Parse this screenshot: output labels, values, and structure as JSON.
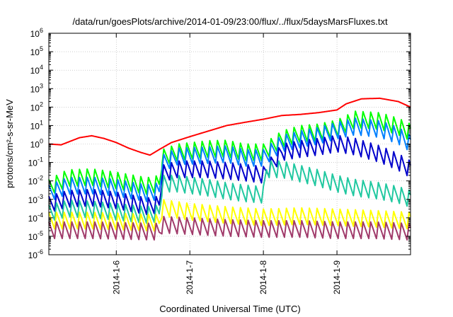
{
  "chart_data": {
    "type": "line",
    "title": "/data/run/goesPlots/archive/2014-01-09/23:00/flux/../flux/5daysMarsFluxes.txt",
    "xlabel": "Coordinated Universal Time (UTC)",
    "ylabel": "protons/cm²-s-sr-MeV",
    "y_log_scale": true,
    "y_tick_exponents": [
      -6,
      -5,
      -4,
      -3,
      -2,
      -1,
      0,
      1,
      2,
      3,
      4,
      5,
      6
    ],
    "xlim": [
      "2014-01-05T02:00",
      "2014-01-10T00:00"
    ],
    "x_ticks": [
      {
        "label": "2014-1-6",
        "date": "2014-01-06T00:00"
      },
      {
        "label": "2014-1-7",
        "date": "2014-01-07T00:00"
      },
      {
        "label": "2014-1-8",
        "date": "2014-01-08T00:00"
      },
      {
        "label": "2014-1-9",
        "date": "2014-01-09T00:00"
      }
    ],
    "grid": true,
    "series": [
      {
        "color": "#ff0000",
        "sawtooth": false,
        "points": [
          [
            "2014-01-05T02:00",
            1.0
          ],
          [
            "2014-01-05T06:00",
            0.9
          ],
          [
            "2014-01-05T12:00",
            2.2
          ],
          [
            "2014-01-05T16:00",
            2.8
          ],
          [
            "2014-01-05T20:00",
            2.0
          ],
          [
            "2014-01-06T00:00",
            1.2
          ],
          [
            "2014-01-06T04:00",
            0.6
          ],
          [
            "2014-01-06T08:00",
            0.35
          ],
          [
            "2014-01-06T11:00",
            0.25
          ],
          [
            "2014-01-06T14:00",
            0.5
          ],
          [
            "2014-01-06T18:00",
            1.2
          ],
          [
            "2014-01-07T00:00",
            2.5
          ],
          [
            "2014-01-07T06:00",
            5.0
          ],
          [
            "2014-01-07T12:00",
            10.0
          ],
          [
            "2014-01-07T18:00",
            15.0
          ],
          [
            "2014-01-08T00:00",
            22.0
          ],
          [
            "2014-01-08T06:00",
            35.0
          ],
          [
            "2014-01-08T12:00",
            40.0
          ],
          [
            "2014-01-08T18:00",
            50.0
          ],
          [
            "2014-01-09T00:00",
            70.0
          ],
          [
            "2014-01-09T03:00",
            150.0
          ],
          [
            "2014-01-09T08:00",
            280.0
          ],
          [
            "2014-01-09T14:00",
            300.0
          ],
          [
            "2014-01-09T20:00",
            200.0
          ],
          [
            "2014-01-10T00:00",
            100.0
          ]
        ]
      },
      {
        "color": "#00ff00",
        "sawtooth": true,
        "points": [
          [
            "2014-01-05T02:00",
            0.012
          ],
          [
            "2014-01-05T08:00",
            0.04
          ],
          [
            "2014-01-05T16:00",
            0.045
          ],
          [
            "2014-01-06T00:00",
            0.03
          ],
          [
            "2014-01-06T10:00",
            0.015
          ],
          [
            "2014-01-06T14:00",
            0.02
          ],
          [
            "2014-01-06T15:00",
            0.5
          ],
          [
            "2014-01-06T20:00",
            1.0
          ],
          [
            "2014-01-07T06:00",
            1.5
          ],
          [
            "2014-01-07T12:00",
            1.6
          ],
          [
            "2014-01-07T18:00",
            1.0
          ],
          [
            "2014-01-08T00:00",
            1.0
          ],
          [
            "2014-01-08T06:00",
            5.0
          ],
          [
            "2014-01-08T12:00",
            10.0
          ],
          [
            "2014-01-08T18:00",
            12.0
          ],
          [
            "2014-01-09T00:00",
            20.0
          ],
          [
            "2014-01-09T06:00",
            60.0
          ],
          [
            "2014-01-09T14:00",
            50.0
          ],
          [
            "2014-01-09T20:00",
            25.0
          ],
          [
            "2014-01-10T00:00",
            12.0
          ]
        ]
      },
      {
        "color": "#0080ff",
        "sawtooth": true,
        "points": [
          [
            "2014-01-05T02:00",
            0.006
          ],
          [
            "2014-01-05T08:00",
            0.015
          ],
          [
            "2014-01-05T16:00",
            0.016
          ],
          [
            "2014-01-06T00:00",
            0.012
          ],
          [
            "2014-01-06T10:00",
            0.006
          ],
          [
            "2014-01-06T14:00",
            0.008
          ],
          [
            "2014-01-06T15:00",
            0.25
          ],
          [
            "2014-01-06T20:00",
            0.6
          ],
          [
            "2014-01-07T06:00",
            0.7
          ],
          [
            "2014-01-07T12:00",
            0.8
          ],
          [
            "2014-01-07T18:00",
            0.5
          ],
          [
            "2014-01-08T00:00",
            0.5
          ],
          [
            "2014-01-08T06:00",
            3.0
          ],
          [
            "2014-01-08T12:00",
            5.0
          ],
          [
            "2014-01-08T18:00",
            8.0
          ],
          [
            "2014-01-09T00:00",
            15.0
          ],
          [
            "2014-01-09T06:00",
            25.0
          ],
          [
            "2014-01-09T14:00",
            18.0
          ],
          [
            "2014-01-09T20:00",
            8.0
          ],
          [
            "2014-01-10T00:00",
            3.0
          ]
        ]
      },
      {
        "color": "#0000cc",
        "sawtooth": true,
        "points": [
          [
            "2014-01-05T02:00",
            0.0015
          ],
          [
            "2014-01-05T08:00",
            0.003
          ],
          [
            "2014-01-05T16:00",
            0.0035
          ],
          [
            "2014-01-06T00:00",
            0.0025
          ],
          [
            "2014-01-06T10:00",
            0.0012
          ],
          [
            "2014-01-06T14:00",
            0.0015
          ],
          [
            "2014-01-06T15:00",
            0.07
          ],
          [
            "2014-01-06T20:00",
            0.12
          ],
          [
            "2014-01-07T06:00",
            0.12
          ],
          [
            "2014-01-07T12:00",
            0.1
          ],
          [
            "2014-01-07T18:00",
            0.08
          ],
          [
            "2014-01-08T00:00",
            0.06
          ],
          [
            "2014-01-08T06:00",
            1.0
          ],
          [
            "2014-01-08T12:00",
            1.5
          ],
          [
            "2014-01-08T18:00",
            2.0
          ],
          [
            "2014-01-09T00:00",
            3.0
          ],
          [
            "2014-01-09T06:00",
            2.0
          ],
          [
            "2014-01-09T14:00",
            0.8
          ],
          [
            "2014-01-09T20:00",
            0.3
          ],
          [
            "2014-01-10T00:00",
            0.12
          ]
        ]
      },
      {
        "color": "#20c8a0",
        "sawtooth": true,
        "points": [
          [
            "2014-01-05T02:00",
            0.0005
          ],
          [
            "2014-01-05T08:00",
            0.0009
          ],
          [
            "2014-01-05T16:00",
            0.0008
          ],
          [
            "2014-01-06T00:00",
            0.0006
          ],
          [
            "2014-01-06T10:00",
            0.0004
          ],
          [
            "2014-01-06T14:00",
            0.0005
          ],
          [
            "2014-01-06T15:00",
            0.02
          ],
          [
            "2014-01-06T20:00",
            0.02
          ],
          [
            "2014-01-07T06:00",
            0.012
          ],
          [
            "2014-01-07T12:00",
            0.008
          ],
          [
            "2014-01-07T18:00",
            0.006
          ],
          [
            "2014-01-08T00:00",
            0.005
          ],
          [
            "2014-01-08T01:00",
            0.12
          ],
          [
            "2014-01-08T06:00",
            0.12
          ],
          [
            "2014-01-08T12:00",
            0.07
          ],
          [
            "2014-01-08T18:00",
            0.04
          ],
          [
            "2014-01-09T00:00",
            0.02
          ],
          [
            "2014-01-09T06:00",
            0.012
          ],
          [
            "2014-01-09T14:00",
            0.008
          ],
          [
            "2014-01-09T20:00",
            0.005
          ],
          [
            "2014-01-10T00:00",
            0.003
          ]
        ]
      },
      {
        "color": "#ffff00",
        "sawtooth": true,
        "points": [
          [
            "2014-01-05T02:00",
            0.0002
          ],
          [
            "2014-01-05T16:00",
            0.0002
          ],
          [
            "2014-01-06T14:00",
            0.00015
          ],
          [
            "2014-01-06T15:00",
            0.001
          ],
          [
            "2014-01-07T00:00",
            0.0006
          ],
          [
            "2014-01-07T12:00",
            0.0004
          ],
          [
            "2014-01-08T00:00",
            0.0003
          ],
          [
            "2014-01-08T12:00",
            0.00035
          ],
          [
            "2014-01-09T00:00",
            0.0003
          ],
          [
            "2014-01-09T12:00",
            0.00025
          ],
          [
            "2014-01-10T00:00",
            0.0002
          ]
        ]
      },
      {
        "color": "#a03a6a",
        "sawtooth": true,
        "points": [
          [
            "2014-01-05T02:00",
            6e-05
          ],
          [
            "2014-01-05T16:00",
            6e-05
          ],
          [
            "2014-01-06T14:00",
            5e-05
          ],
          [
            "2014-01-06T15:00",
            0.00012
          ],
          [
            "2014-01-07T00:00",
            0.0001
          ],
          [
            "2014-01-07T12:00",
            8e-05
          ],
          [
            "2014-01-08T00:00",
            7e-05
          ],
          [
            "2014-01-08T12:00",
            7e-05
          ],
          [
            "2014-01-09T00:00",
            6e-05
          ],
          [
            "2014-01-09T12:00",
            6e-05
          ],
          [
            "2014-01-10T00:00",
            5e-05
          ]
        ]
      }
    ]
  }
}
